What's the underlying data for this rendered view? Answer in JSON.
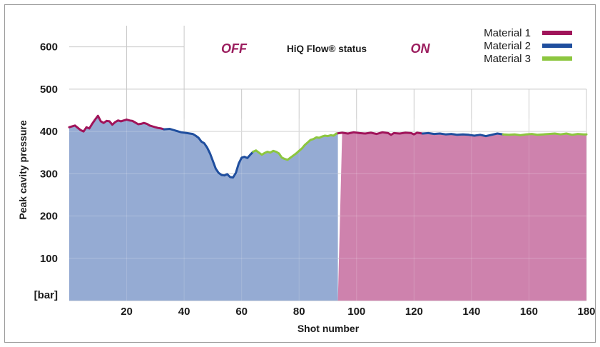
{
  "chart_data": {
    "type": "area",
    "xlabel": "Shot number",
    "ylabel": "Peak cavity pressure",
    "yunit_label": "[bar]",
    "xlim": [
      0,
      180
    ],
    "ylim": [
      0,
      650
    ],
    "x_ticks": [
      20,
      40,
      60,
      80,
      100,
      120,
      140,
      160,
      180
    ],
    "y_ticks": [
      100,
      200,
      300,
      400,
      500,
      600
    ],
    "status_label": "HiQ Flow® status",
    "status_off": "OFF",
    "status_on": "ON",
    "off_range": [
      0,
      93.5
    ],
    "on_range": [
      93.5,
      180
    ],
    "legend_position": "top-right",
    "series": [
      {
        "name": "Material 1",
        "color": "#a0145a",
        "segments": [
          [
            [
              0,
              410
            ],
            [
              2,
              414
            ],
            [
              4,
              403
            ],
            [
              5,
              400
            ],
            [
              6,
              410
            ],
            [
              7,
              407
            ],
            [
              8,
              418
            ],
            [
              9,
              428
            ],
            [
              10,
              437
            ],
            [
              11,
              424
            ],
            [
              12,
              420
            ],
            [
              13,
              425
            ],
            [
              14,
              424
            ],
            [
              15,
              416
            ],
            [
              16,
              422
            ],
            [
              17,
              426
            ],
            [
              18,
              424
            ],
            [
              19,
              426
            ],
            [
              20,
              428
            ],
            [
              21,
              426
            ],
            [
              22,
              425
            ],
            [
              23,
              421
            ],
            [
              24,
              417
            ],
            [
              25,
              418
            ],
            [
              26,
              420
            ],
            [
              27,
              418
            ],
            [
              28,
              414
            ],
            [
              29,
              412
            ],
            [
              30,
              410
            ],
            [
              31,
              408
            ],
            [
              32,
              407
            ],
            [
              33,
              405
            ]
          ],
          [
            [
              93,
              395
            ],
            [
              95,
              397
            ],
            [
              97,
              395
            ],
            [
              99,
              398
            ],
            [
              101,
              396
            ],
            [
              103,
              395
            ],
            [
              105,
              397
            ],
            [
              107,
              394
            ],
            [
              109,
              398
            ],
            [
              111,
              396
            ],
            [
              112,
              392
            ],
            [
              113,
              396
            ],
            [
              115,
              395
            ],
            [
              117,
              397
            ],
            [
              119,
              396
            ],
            [
              120,
              393
            ],
            [
              121,
              397
            ],
            [
              123,
              395
            ]
          ]
        ]
      },
      {
        "name": "Material 2",
        "color": "#1f4e9e",
        "segments": [
          [
            [
              33,
              405
            ],
            [
              35,
              406
            ],
            [
              37,
              402
            ],
            [
              39,
              398
            ],
            [
              41,
              396
            ],
            [
              43,
              394
            ],
            [
              44,
              390
            ],
            [
              45,
              385
            ],
            [
              46,
              376
            ],
            [
              47,
              372
            ],
            [
              48,
              362
            ],
            [
              49,
              348
            ],
            [
              50,
              330
            ],
            [
              51,
              312
            ],
            [
              52,
              302
            ],
            [
              53,
              297
            ],
            [
              54,
              296
            ],
            [
              55,
              299
            ],
            [
              56,
              292
            ],
            [
              57,
              291
            ],
            [
              58,
              302
            ],
            [
              59,
              324
            ],
            [
              60,
              338
            ],
            [
              61,
              340
            ],
            [
              62,
              337
            ],
            [
              63,
              345
            ],
            [
              64,
              352
            ]
          ],
          [
            [
              123,
              395
            ],
            [
              125,
              396
            ],
            [
              127,
              394
            ],
            [
              129,
              395
            ],
            [
              131,
              393
            ],
            [
              133,
              394
            ],
            [
              135,
              392
            ],
            [
              137,
              393
            ],
            [
              139,
              392
            ],
            [
              141,
              390
            ],
            [
              143,
              392
            ],
            [
              145,
              389
            ],
            [
              147,
              392
            ],
            [
              149,
              395
            ],
            [
              151,
              393
            ]
          ]
        ]
      },
      {
        "name": "Material 3",
        "color": "#8cc63f",
        "segments": [
          [
            [
              64,
              352
            ],
            [
              65,
              355
            ],
            [
              66,
              350
            ],
            [
              67,
              345
            ],
            [
              68,
              349
            ],
            [
              69,
              352
            ],
            [
              70,
              350
            ],
            [
              71,
              354
            ],
            [
              72,
              352
            ],
            [
              73,
              348
            ],
            [
              74,
              338
            ],
            [
              75,
              335
            ],
            [
              76,
              333
            ],
            [
              77,
              338
            ],
            [
              78,
              343
            ],
            [
              79,
              348
            ],
            [
              80,
              354
            ],
            [
              81,
              360
            ],
            [
              82,
              368
            ],
            [
              83,
              374
            ],
            [
              84,
              380
            ],
            [
              85,
              382
            ],
            [
              86,
              386
            ],
            [
              87,
              385
            ],
            [
              88,
              388
            ],
            [
              89,
              390
            ],
            [
              90,
              389
            ],
            [
              91,
              391
            ],
            [
              92,
              390
            ],
            [
              93,
              395
            ]
          ],
          [
            [
              151,
              393
            ],
            [
              153,
              392
            ],
            [
              155,
              393
            ],
            [
              157,
              391
            ],
            [
              159,
              393
            ],
            [
              161,
              394
            ],
            [
              163,
              392
            ],
            [
              165,
              393
            ],
            [
              167,
              394
            ],
            [
              169,
              395
            ],
            [
              171,
              393
            ],
            [
              173,
              395
            ],
            [
              175,
              392
            ],
            [
              177,
              394
            ],
            [
              179,
              393
            ],
            [
              180,
              393
            ]
          ]
        ]
      }
    ]
  }
}
